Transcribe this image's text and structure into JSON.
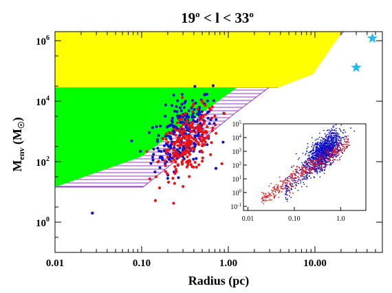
{
  "chart_data": {
    "type": "scatter",
    "title": "19° < l < 33°",
    "xlabel": "Radius (pc)",
    "ylabel": "M_env (M_☉)",
    "x_scale": "log",
    "y_scale": "log",
    "xlim": [
      0.01,
      60
    ],
    "ylim": [
      0.1,
      2000000
    ],
    "x_ticks": [
      "0.01",
      "0.10",
      "1.00",
      "10.00"
    ],
    "y_ticks": [
      "10^0",
      "10^2",
      "10^4",
      "10^6"
    ],
    "grid": false,
    "regions": [
      {
        "color": "#ffff00",
        "mass_range": [
          30000,
          2000000
        ]
      },
      {
        "color": "#00ff00",
        "mass_range": [
          8,
          30000
        ]
      },
      {
        "color": "#9933cc",
        "style": "hatched",
        "note": "boundary band"
      }
    ],
    "series": [
      {
        "color": "#1111cc",
        "marker": "circle",
        "center": {
          "radius": 0.3,
          "mass": 1000
        },
        "count": 260
      },
      {
        "color": "#ee1111",
        "marker": "circle",
        "center": {
          "radius": 0.35,
          "mass": 400
        },
        "count": 220
      },
      {
        "color": "#22bbee",
        "marker": "star",
        "points": [
          {
            "x": 46,
            "y": 1200000
          },
          {
            "x": 30,
            "y": 130000
          }
        ]
      }
    ],
    "outliers": [
      {
        "x": 0.027,
        "y": 2,
        "color": "#1111cc"
      },
      {
        "x": 0.72,
        "y": 60,
        "color": "#1111cc"
      }
    ],
    "inset": {
      "type": "scatter",
      "x_scale": "log",
      "y_scale": "log",
      "xlim": [
        0.008,
        3.5
      ],
      "ylim": [
        0.05,
        100000
      ],
      "x_ticks": [
        "0.01",
        "0.10",
        "1.0"
      ],
      "y_ticks": [
        "10^-1",
        "10^0",
        "10^1",
        "10^2",
        "10^3",
        "10^4",
        "10^5"
      ],
      "series": [
        {
          "color": "#1111cc",
          "count": 1500
        },
        {
          "color": "#ee1111",
          "count": 400
        }
      ]
    }
  }
}
